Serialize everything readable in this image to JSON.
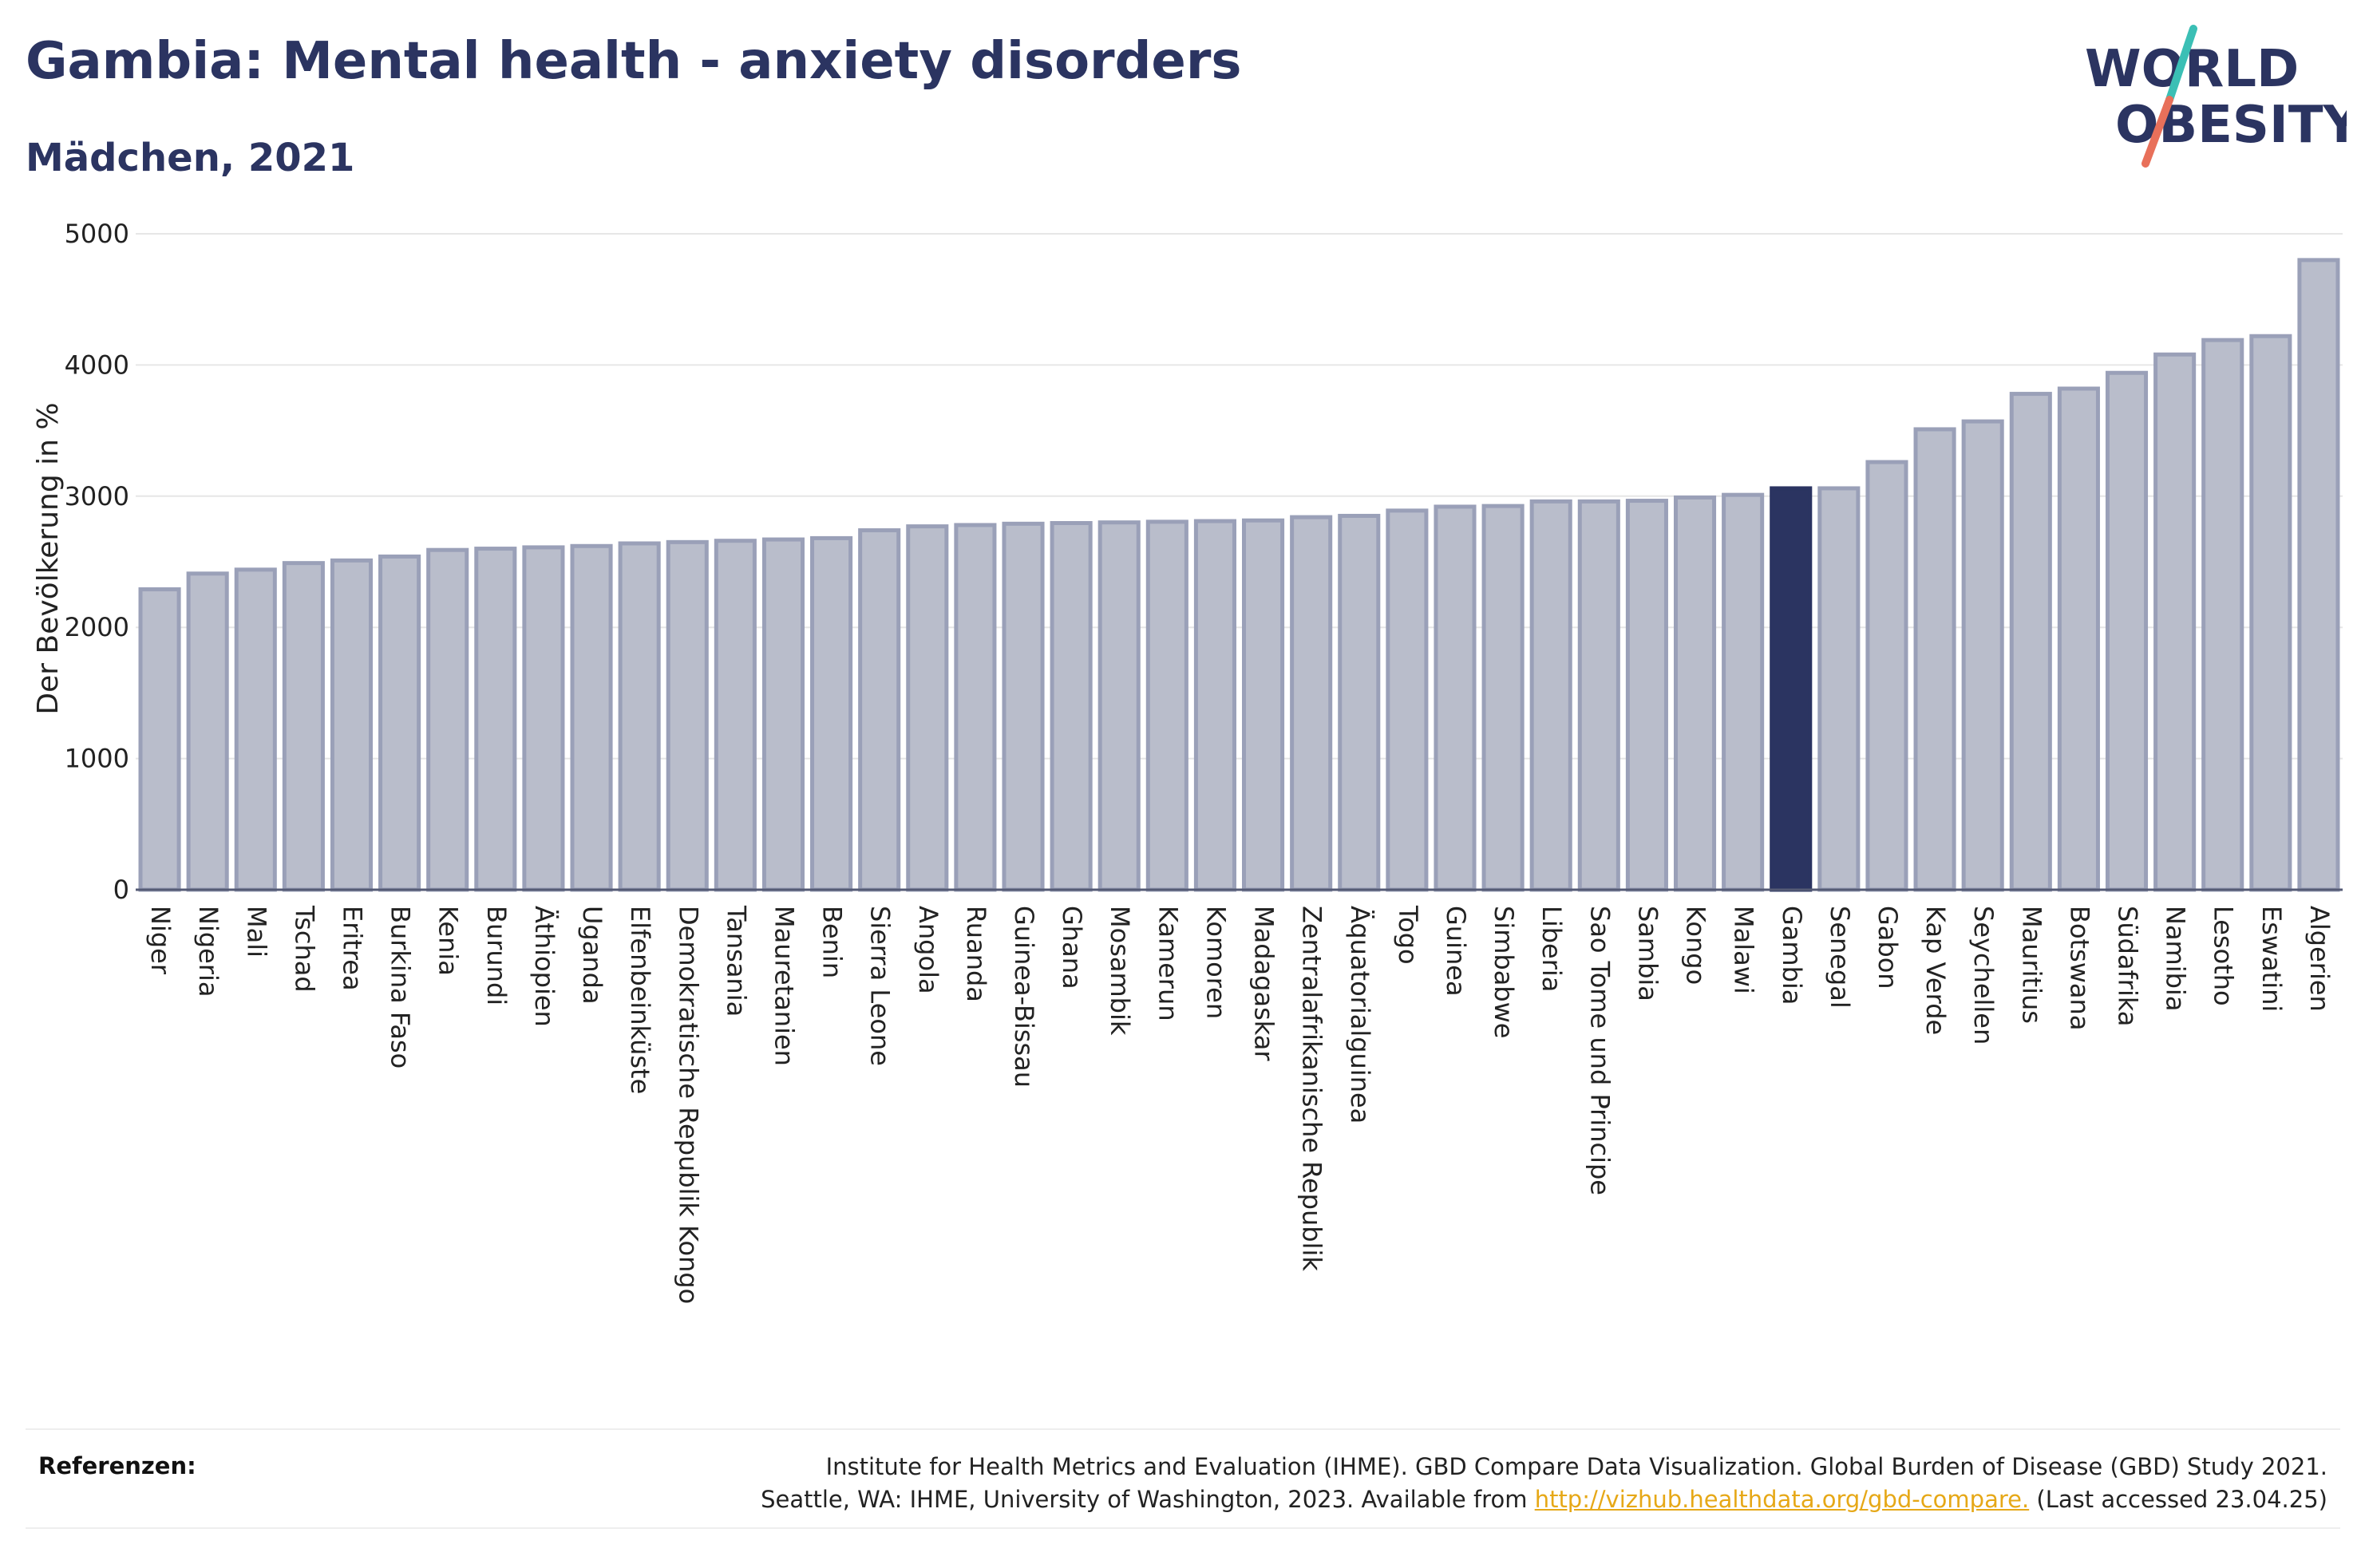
{
  "header": {
    "title": "Gambia: Mental health - anxiety disorders",
    "subtitle": "Mädchen, 2021"
  },
  "logo": {
    "line1": "WORLD",
    "line2": "OBESITY",
    "colors": {
      "text": "#2b3461",
      "slash_teal": "#3bbfb5",
      "slash_coral": "#e8705a"
    }
  },
  "colors": {
    "bar_fill": "#b9bdcb",
    "bar_stroke": "#9aa0b8",
    "highlight_fill": "#2b3461",
    "gridline": "#e6e6e6",
    "baseline": "#555b75"
  },
  "chart_data": {
    "type": "bar",
    "title": "Gambia: Mental health - anxiety disorders",
    "subtitle": "Mädchen, 2021",
    "xlabel": "",
    "ylabel": "Der Bevölkerung in %",
    "ylim": [
      0,
      5000
    ],
    "yticks": [
      "0",
      "1000",
      "2000",
      "3000",
      "4000",
      "5000"
    ],
    "grid": true,
    "highlight": "Gambia",
    "categories": [
      "Niger",
      "Nigeria",
      "Mali",
      "Tschad",
      "Eritrea",
      "Burkina Faso",
      "Kenia",
      "Burundi",
      "Äthiopien",
      "Uganda",
      "Elfenbeinküste",
      "Demokratische Republik Kongo",
      "Tansania",
      "Mauretanien",
      "Benin",
      "Sierra Leone",
      "Angola",
      "Ruanda",
      "Guinea-Bissau",
      "Ghana",
      "Mosambik",
      "Kamerun",
      "Komoren",
      "Madagaskar",
      "Zentralafrikanische Republik",
      "Äquatorialguinea",
      "Togo",
      "Guinea",
      "Simbabwe",
      "Liberia",
      "Sao Tome und Principe",
      "Sambia",
      "Kongo",
      "Malawi",
      "Gambia",
      "Senegal",
      "Gabon",
      "Kap Verde",
      "Seychellen",
      "Mauritius",
      "Botswana",
      "Südafrika",
      "Namibia",
      "Lesotho",
      "Eswatini",
      "Algerien"
    ],
    "values": [
      2290,
      2410,
      2440,
      2490,
      2510,
      2540,
      2590,
      2600,
      2610,
      2620,
      2640,
      2650,
      2660,
      2670,
      2680,
      2740,
      2770,
      2780,
      2790,
      2795,
      2800,
      2805,
      2810,
      2815,
      2840,
      2850,
      2890,
      2920,
      2925,
      2960,
      2960,
      2965,
      2990,
      3010,
      3060,
      3060,
      3260,
      3510,
      3570,
      3780,
      3820,
      3940,
      4080,
      4190,
      4220,
      4800
    ]
  },
  "footer": {
    "label": "Referenzen:",
    "line1": "Institute for Health Metrics and Evaluation (IHME). GBD Compare Data Visualization. Global Burden of Disease (GBD) Study 2021.",
    "line2_before": "Seattle, WA: IHME, University of Washington, 2023. Available from ",
    "link_text": "http://vizhub.healthdata.org/gbd-compare.",
    "line2_after": " (Last accessed 23.04.25)"
  }
}
